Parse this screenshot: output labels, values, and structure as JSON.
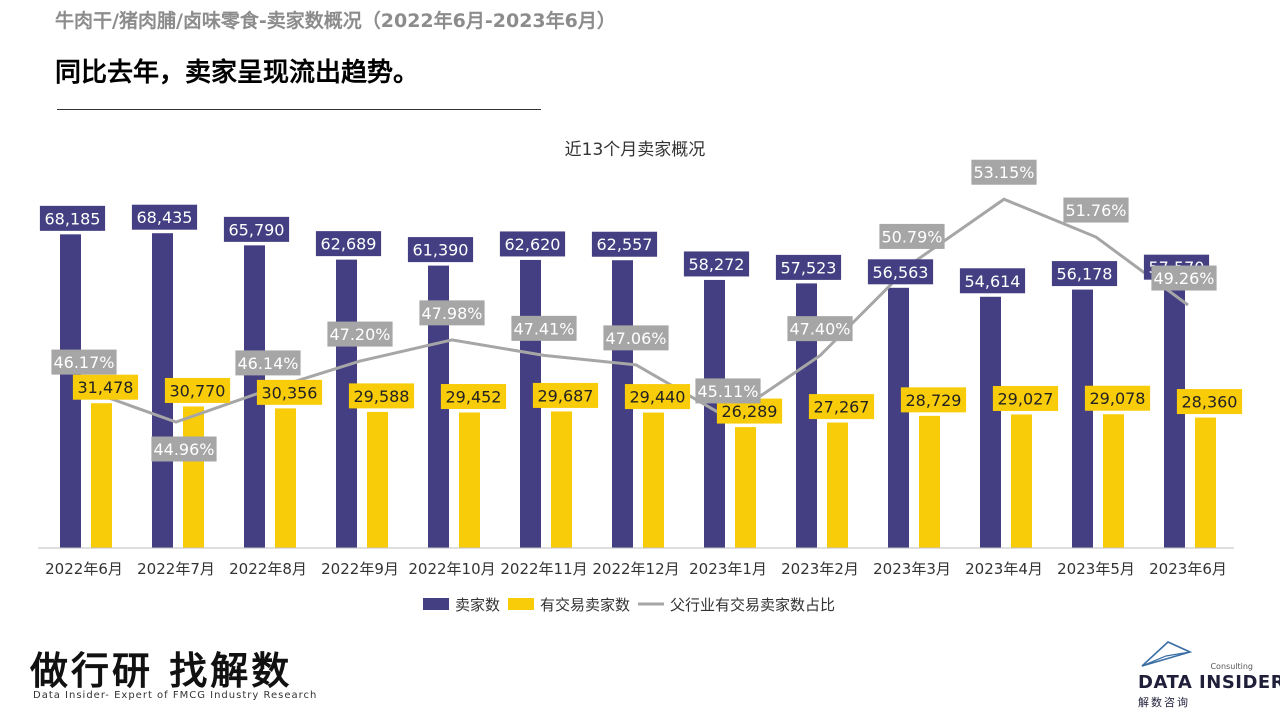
{
  "header": {
    "title": "牛肉干/猪肉脯/卤味零食-卖家数概况（2022年6月-2023年6月）",
    "headline": "同比去年，卖家呈现流出趋势。"
  },
  "chart_data": {
    "type": "bar",
    "title": "近13个月卖家概况",
    "categories": [
      "2022年6月",
      "2022年7月",
      "2022年8月",
      "2022年9月",
      "2022年10月",
      "2022年11月",
      "2022年12月",
      "2023年1月",
      "2023年2月",
      "2023年3月",
      "2023年4月",
      "2023年5月",
      "2023年6月"
    ],
    "series": [
      {
        "name": "卖家数",
        "type": "bar",
        "color": "#433f82",
        "values": [
          68185,
          68435,
          65790,
          62689,
          61390,
          62620,
          62557,
          58272,
          57523,
          56563,
          54614,
          56178,
          57570
        ],
        "labels": [
          "68,185",
          "68,435",
          "65,790",
          "62,689",
          "61,390",
          "62,620",
          "62,557",
          "58,272",
          "57,523",
          "56,563",
          "54,614",
          "56,178",
          "57,570"
        ]
      },
      {
        "name": "有交易卖家数",
        "type": "bar",
        "color": "#f9cc0a",
        "values": [
          31478,
          30770,
          30356,
          29588,
          29452,
          29687,
          29440,
          26289,
          27267,
          28729,
          29027,
          29078,
          28360
        ],
        "labels": [
          "31,478",
          "30,770",
          "30,356",
          "29,588",
          "29,452",
          "29,687",
          "29,440",
          "26,289",
          "27,267",
          "28,729",
          "29,027",
          "29,078",
          "28,360"
        ]
      },
      {
        "name": "父行业有交易卖家数占比",
        "type": "line",
        "color": "#a6a6a6",
        "values": [
          46.17,
          44.96,
          46.14,
          47.2,
          47.98,
          47.41,
          47.06,
          45.11,
          47.4,
          50.79,
          53.15,
          51.76,
          49.26
        ],
        "labels": [
          "46.17%",
          "44.96%",
          "46.14%",
          "47.20%",
          "47.98%",
          "47.41%",
          "47.06%",
          "45.11%",
          "47.40%",
          "50.79%",
          "53.15%",
          "51.76%",
          "49.26%"
        ]
      }
    ],
    "legend_position": "bottom",
    "grid": false
  },
  "footer": {
    "slogan": "做行研 找解数",
    "subtitle": "Data Insider- Expert of FMCG Industry Research"
  },
  "logo": {
    "consulting": "Consulting",
    "name": "DATA INSIDER",
    "cn": "解数咨询"
  }
}
